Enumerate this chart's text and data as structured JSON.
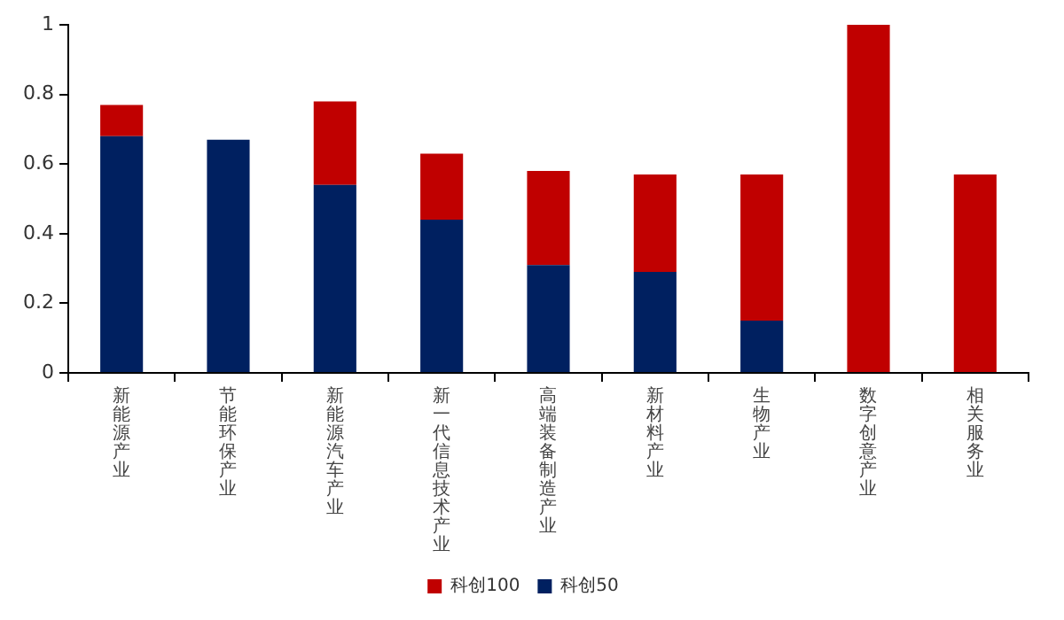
{
  "chart_data": {
    "type": "bar",
    "stacked": true,
    "categories": [
      "新能源产业",
      "节能环保产业",
      "新能源汽车产业",
      "新一代信息技术产业",
      "高端装备制造产业",
      "新材料产业",
      "生物产业",
      "数字创意产业",
      "相关服务业"
    ],
    "series": [
      {
        "name": "科创50",
        "color": "#002060",
        "values": [
          0.68,
          0.67,
          0.54,
          0.44,
          0.31,
          0.29,
          0.15,
          null,
          null
        ]
      },
      {
        "name": "科创100",
        "color": "#c00000",
        "values": [
          0.09,
          null,
          0.24,
          0.19,
          0.27,
          0.28,
          0.42,
          1.0,
          0.57
        ]
      }
    ],
    "ylim": [
      0,
      1
    ],
    "yticks": [
      0,
      0.2,
      0.4,
      0.6,
      0.8,
      1
    ],
    "grid": false,
    "legend": "bottom"
  }
}
